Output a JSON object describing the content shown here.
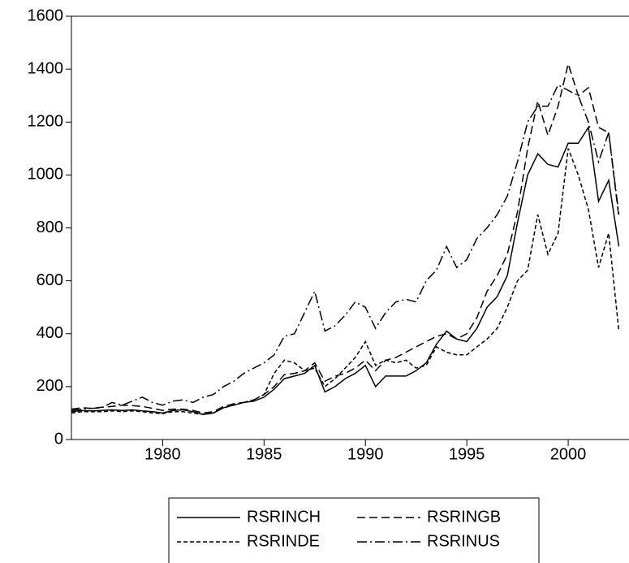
{
  "chart_data": {
    "type": "line",
    "x": [
      1975.5,
      1976,
      1976.5,
      1977,
      1977.5,
      1978,
      1978.5,
      1979,
      1979.5,
      1980,
      1980.5,
      1981,
      1981.5,
      1982,
      1982.5,
      1983,
      1983.5,
      1984,
      1984.5,
      1985,
      1985.5,
      1986,
      1986.5,
      1987,
      1987.5,
      1988,
      1988.5,
      1989,
      1989.5,
      1990,
      1990.5,
      1991,
      1991.5,
      1992,
      1992.5,
      1993,
      1993.5,
      1994,
      1994.5,
      1995,
      1995.5,
      1996,
      1996.5,
      1997,
      1997.5,
      1998,
      1998.5,
      1999,
      1999.5,
      2000,
      2000.5,
      2001,
      2001.5,
      2002,
      2002.5
    ],
    "series": [
      {
        "name": "RSRINCH",
        "color": "#000000",
        "values": [
          105,
          110,
          108,
          110,
          112,
          110,
          112,
          108,
          105,
          100,
          110,
          112,
          105,
          95,
          100,
          120,
          130,
          140,
          145,
          160,
          190,
          230,
          240,
          250,
          280,
          180,
          200,
          230,
          250,
          280,
          200,
          240,
          240,
          240,
          260,
          290,
          360,
          410,
          380,
          370,
          420,
          500,
          540,
          620,
          820,
          1000,
          1080,
          1040,
          1030,
          1120,
          1120,
          1180,
          900,
          980,
          730
        ]
      },
      {
        "name": "RSRINGB",
        "color": "#000000",
        "values": [
          115,
          120,
          118,
          122,
          125,
          130,
          128,
          125,
          118,
          110,
          115,
          115,
          110,
          100,
          105,
          125,
          135,
          140,
          150,
          170,
          200,
          245,
          250,
          260,
          290,
          220,
          240,
          250,
          270,
          300,
          260,
          300,
          310,
          330,
          350,
          370,
          390,
          400,
          380,
          400,
          460,
          560,
          620,
          700,
          860,
          1100,
          1280,
          1150,
          1260,
          1420,
          1300,
          1330,
          1180,
          1160,
          840
        ]
      },
      {
        "name": "RSRINDE",
        "color": "#000000",
        "values": [
          100,
          105,
          105,
          105,
          108,
          105,
          108,
          105,
          100,
          98,
          105,
          105,
          100,
          95,
          100,
          120,
          130,
          140,
          150,
          170,
          250,
          300,
          290,
          260,
          270,
          200,
          230,
          270,
          310,
          370,
          280,
          300,
          290,
          300,
          270,
          280,
          350,
          330,
          320,
          320,
          350,
          380,
          420,
          500,
          600,
          640,
          850,
          700,
          780,
          1100,
          1000,
          870,
          650,
          780,
          410
        ]
      },
      {
        "name": "RSRINUS",
        "color": "#000000",
        "values": [
          110,
          115,
          118,
          120,
          140,
          130,
          145,
          160,
          140,
          130,
          145,
          150,
          140,
          160,
          170,
          200,
          220,
          250,
          270,
          290,
          320,
          390,
          400,
          480,
          560,
          410,
          430,
          470,
          520,
          500,
          420,
          480,
          520,
          530,
          520,
          600,
          640,
          730,
          650,
          680,
          760,
          800,
          850,
          920,
          1050,
          1200,
          1260,
          1260,
          1340,
          1320,
          1300,
          1200,
          1050,
          1160,
          850
        ]
      }
    ],
    "xlim": [
      1975.5,
      2003
    ],
    "xticks": [
      1980,
      1985,
      1990,
      1995,
      2000
    ],
    "ylim": [
      0,
      1600
    ],
    "yticks": [
      0,
      200,
      400,
      600,
      800,
      1000,
      1200,
      1400,
      1600
    ]
  }
}
